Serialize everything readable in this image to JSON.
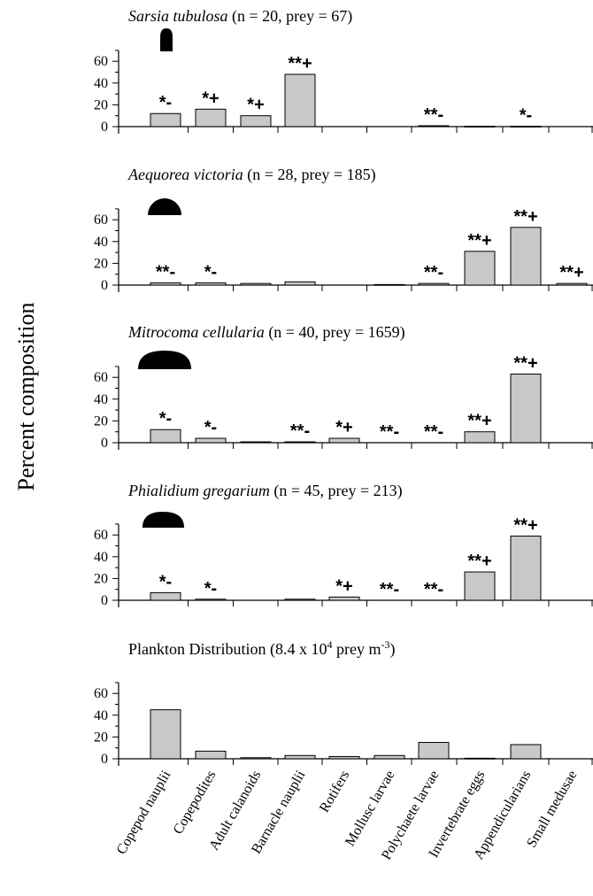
{
  "ylabel": "Percent composition",
  "categories": [
    "Copepod nauplii",
    "Copepodites",
    "Adult calanoids",
    "Barnacle nauplii",
    "Rotifers",
    "Mollusc larvae",
    "Polychaete larvae",
    "Invertebrate eggs",
    "Appendicularians",
    "Small medusae"
  ],
  "chart_data": [
    {
      "type": "bar",
      "title_italic": "Sarsia tubulosa",
      "title_rest": " (n = 20, prey = 67)",
      "ylim": [
        0,
        70
      ],
      "yticks": [
        "0",
        "20",
        "40",
        "60"
      ],
      "values": [
        12,
        16,
        10,
        48,
        0,
        0,
        0.8,
        0.3,
        0.3,
        0
      ],
      "annotations": [
        "*-",
        "*+",
        "*+",
        "**+",
        "",
        "",
        "**-",
        "",
        "*-",
        ""
      ],
      "icon": "narrow-bell-icon"
    },
    {
      "type": "bar",
      "title_italic": "Aequorea victoria",
      "title_rest": " (n = 28, prey = 185)",
      "ylim": [
        0,
        70
      ],
      "yticks": [
        "0",
        "20",
        "40",
        "60"
      ],
      "values": [
        2,
        2,
        1.5,
        3,
        0,
        0.5,
        1.5,
        31,
        53,
        1.5
      ],
      "annotations": [
        "**-",
        "*-",
        "",
        "",
        "",
        "",
        "**-",
        "**+",
        "**+",
        "**+"
      ],
      "icon": "half-dome-bell-icon"
    },
    {
      "type": "bar",
      "title_italic": "Mitrocoma cellularia",
      "title_rest": " (n = 40, prey = 1659)",
      "ylim": [
        0,
        70
      ],
      "yticks": [
        "0",
        "20",
        "40",
        "60"
      ],
      "values": [
        12,
        4,
        0.8,
        0.8,
        4,
        0,
        0,
        10,
        63,
        0
      ],
      "annotations": [
        "*-",
        "*-",
        "",
        "**-",
        "*+",
        "**-",
        "**-",
        "**+",
        "**+",
        ""
      ],
      "icon": "wide-flat-bell-icon"
    },
    {
      "type": "bar",
      "title_italic": "Phialidium gregarium",
      "title_rest": " (n = 45, prey = 213)",
      "ylim": [
        0,
        70
      ],
      "yticks": [
        "0",
        "20",
        "40",
        "60"
      ],
      "values": [
        7,
        1,
        0,
        1,
        3,
        0,
        0,
        26,
        59,
        0
      ],
      "annotations": [
        "*-",
        "*-",
        "",
        "",
        "*+",
        "**-",
        "**-",
        "**+",
        "**+",
        ""
      ],
      "icon": "flat-bell-icon"
    },
    {
      "type": "bar",
      "title_plain": "Plankton Distribution (8.4 x 10",
      "title_sup": "4",
      "title_after": " prey m",
      "title_sup2": "-3",
      "title_end": ")",
      "ylim": [
        0,
        70
      ],
      "yticks": [
        "0",
        "20",
        "40",
        "60"
      ],
      "values": [
        45,
        7,
        1,
        3,
        2,
        3,
        15,
        0.5,
        13,
        0
      ],
      "annotations": [
        "",
        "",
        "",
        "",
        "",
        "",
        "",
        "",
        "",
        ""
      ]
    }
  ],
  "colors": {
    "bar_fill": "#c8c8c8",
    "bar_stroke": "#000000",
    "icon": "#000000"
  }
}
